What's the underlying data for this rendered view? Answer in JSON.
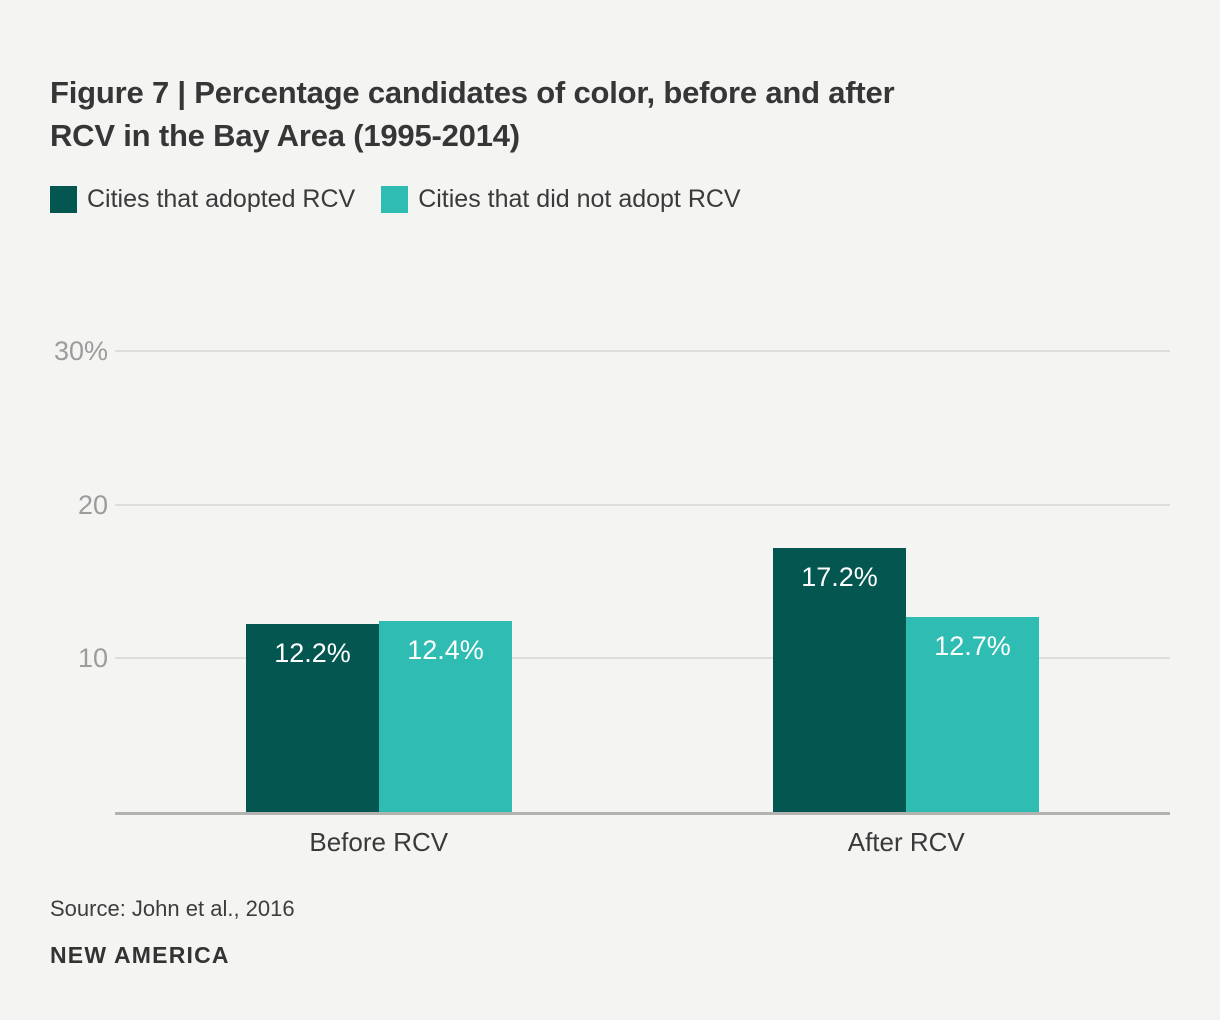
{
  "figure": {
    "title_lines": [
      "Figure 7 | Percentage candidates of color, before and after",
      "RCV in the Bay Area (1995-2014)"
    ]
  },
  "legend": {
    "items": [
      {
        "label": "Cities that adopted RCV",
        "color": "#045751"
      },
      {
        "label": "Cities that did not adopt RCV",
        "color": "#2fbcb2"
      }
    ]
  },
  "chart_data": {
    "type": "bar",
    "title": "Figure 7 | Percentage candidates of color, before and after RCV in the Bay Area (1995-2014)",
    "categories": [
      "Before RCV",
      "After RCV"
    ],
    "series": [
      {
        "name": "Cities that adopted RCV",
        "key": "adopted-rcv",
        "color": "#045751",
        "values": [
          12.2,
          17.2
        ],
        "labels": [
          "12.2%",
          "17.2%"
        ]
      },
      {
        "name": "Cities that did not adopt RCV",
        "key": "did-not-adopt-rcv",
        "color": "#2fbcb2",
        "values": [
          12.4,
          12.7
        ],
        "labels": [
          "12.4%",
          "12.7%"
        ]
      }
    ],
    "y_axis": {
      "min": 0,
      "max": 31.6,
      "ticks": [
        {
          "value": 30,
          "label": "30%"
        },
        {
          "value": 20,
          "label": "20"
        },
        {
          "value": 10,
          "label": "10"
        }
      ]
    },
    "grid": true,
    "legend_position": "top-left"
  },
  "footer": {
    "source": "Source: John et al., 2016",
    "brand": "NEW AMERICA"
  },
  "theme": {
    "background": "#f4f4f3",
    "title_color": "#363636",
    "axis_label_color": "#9c9c9c",
    "gridline_color": "#dddddc",
    "baseline_color": "#b2b2b1",
    "bar_label_color": "#ffffff",
    "dark_teal": "#045751",
    "light_teal": "#2fbcb2"
  }
}
